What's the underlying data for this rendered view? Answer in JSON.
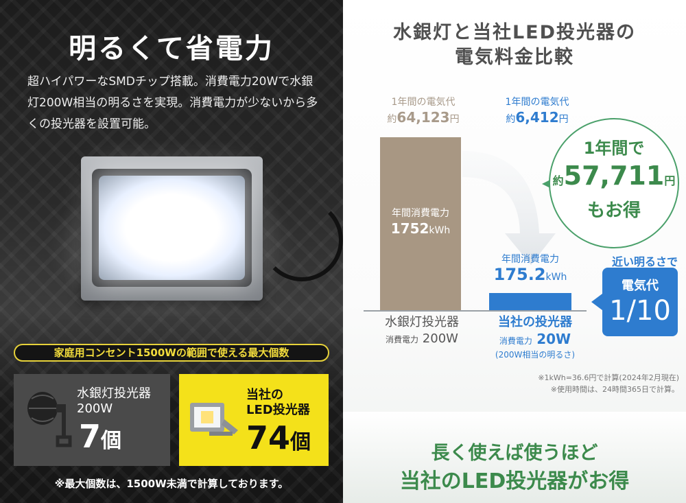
{
  "left": {
    "title": "明るくて省電力",
    "description": "超ハイパワーなSMDチップ搭載。消費電力20Wで水銀灯200W相当の明るさを実現。消費電力が少ないから多くの投光器を設置可能。",
    "ribbon": "家庭用コンセント1500Wの範囲で使える最大個数",
    "mercury_box": {
      "name_line1": "水銀灯投光器",
      "name_line2": "200W",
      "count": "7",
      "unit": "個"
    },
    "led_box": {
      "name_line1": "当社の",
      "name_line2": "LED投光器",
      "count": "74",
      "unit": "個"
    },
    "note": "※最大個数は、1500W未満で計算しております。"
  },
  "right": {
    "title_line1": "水銀灯と当社LED投光器の",
    "title_line2": "電気料金比較",
    "mercury": {
      "cost_label": "1年間の電気代",
      "cost_prefix": "約",
      "cost_value": "64,123",
      "cost_unit": "円",
      "usage_label": "年間消費電力",
      "usage_value": "1752",
      "usage_unit": "kWh",
      "name": "水銀灯投光器",
      "power_label": "消費電力",
      "power_value": "200W"
    },
    "led": {
      "cost_label": "1年間の電気代",
      "cost_prefix": "約",
      "cost_value": "6,412",
      "cost_unit": "円",
      "usage_label": "年間消費電力",
      "usage_value": "175.2",
      "usage_unit": "kWh",
      "name": "当社の投光器",
      "power_label": "消費電力",
      "power_value": "20W",
      "equivalent": "(200W相当の明るさ)"
    },
    "savings": {
      "line1": "1年間で",
      "prefix": "約",
      "amount": "57,711",
      "unit": "円",
      "line3": "もお得"
    },
    "brightness_label": "近い明るさで",
    "ratio_label": "電気代",
    "ratio_value": "1/10",
    "notes": [
      "※1kWh=36.6円で計算(2024年2月現在)",
      "※使用時間は、24時間365日で計算。"
    ],
    "bottom_line1": "長く使えば使うほど",
    "bottom_line2": "当社のLED投光器がお得"
  },
  "chart_data": {
    "type": "bar",
    "categories": [
      "水銀灯投光器",
      "当社の投光器"
    ],
    "values": [
      1752,
      175.2
    ],
    "ylabel": "年間消費電力",
    "annual_cost_yen": [
      64123,
      6412
    ]
  },
  "colors": {
    "led_blue": "#2e7ccf",
    "mercury_brown": "#a89783",
    "savings_green": "#3c8a4c",
    "ribbon_yellow": "#f2dc3c",
    "led_box_yellow": "#f4e11a"
  }
}
